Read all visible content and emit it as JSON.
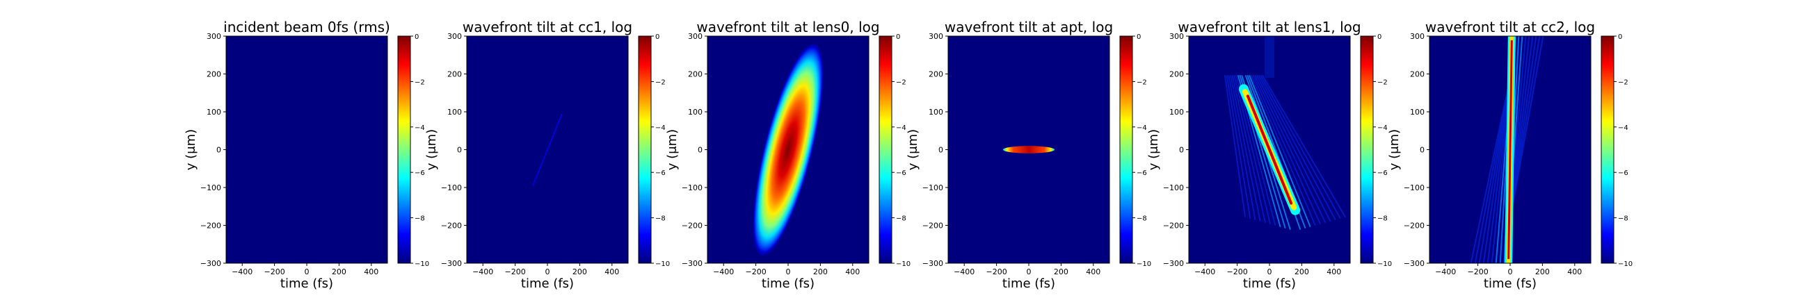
{
  "chart_data": [
    {
      "type": "heatmap",
      "title": "incident beam 0fs (rms)",
      "xlabel": "time (fs)",
      "ylabel": "y (μm)",
      "xlim": [
        -500,
        500
      ],
      "ylim": [
        -300,
        300
      ],
      "x_ticks": [
        "−400",
        "−200",
        "0",
        "200",
        "400"
      ],
      "y_ticks": [
        "300",
        "200",
        "100",
        "0",
        "−100",
        "−200",
        "−300"
      ],
      "colorbar": {
        "range": [
          -10,
          0
        ],
        "ticks": [
          "0",
          "−2",
          "−4",
          "−6",
          "−8",
          "−10"
        ]
      },
      "pattern": {
        "kind": "none"
      }
    },
    {
      "type": "heatmap",
      "title": "wavefront tilt at cc1, log",
      "xlabel": "time (fs)",
      "ylabel": "y (μm)",
      "xlim": [
        -500,
        500
      ],
      "ylim": [
        -300,
        300
      ],
      "x_ticks": [
        "−400",
        "−200",
        "0",
        "200",
        "400"
      ],
      "y_ticks": [
        "300",
        "200",
        "100",
        "0",
        "−100",
        "−200",
        "−300"
      ],
      "colorbar": {
        "range": [
          -10,
          0
        ],
        "ticks": [
          "0",
          "−2",
          "−4",
          "−6",
          "−8",
          "−10"
        ]
      },
      "pattern": {
        "kind": "line",
        "x1": -90,
        "y1": -95,
        "x2": 90,
        "y2": 95,
        "level": -8.5
      }
    },
    {
      "type": "heatmap",
      "title": "wavefront tilt at lens0, log",
      "xlabel": "time (fs)",
      "ylabel": "y (μm)",
      "xlim": [
        -500,
        500
      ],
      "ylim": [
        -300,
        300
      ],
      "x_ticks": [
        "−400",
        "−200",
        "0",
        "200",
        "400"
      ],
      "y_ticks": [
        "300",
        "200",
        "100",
        "0",
        "−100",
        "−200",
        "−300"
      ],
      "colorbar": {
        "range": [
          -10,
          0
        ],
        "ticks": [
          "0",
          "−2",
          "−4",
          "−6",
          "−8",
          "−10"
        ]
      },
      "pattern": {
        "kind": "ellipse",
        "cx": 0,
        "cy": 0,
        "halfwidth_t": 150,
        "halfheight_y": 290,
        "angle_deg": 14
      }
    },
    {
      "type": "heatmap",
      "title": "wavefront tilt at apt, log",
      "xlabel": "time (fs)",
      "ylabel": "y (μm)",
      "xlim": [
        -500,
        500
      ],
      "ylim": [
        -300,
        300
      ],
      "x_ticks": [
        "−400",
        "−200",
        "0",
        "200",
        "400"
      ],
      "y_ticks": [
        "300",
        "200",
        "100",
        "0",
        "−100",
        "−200",
        "−300"
      ],
      "colorbar": {
        "range": [
          -10,
          0
        ],
        "ticks": [
          "0",
          "−2",
          "−4",
          "−6",
          "−8",
          "−10"
        ]
      },
      "pattern": {
        "kind": "bar",
        "cx": 0,
        "cy": 0,
        "halfwidth_t": 160,
        "halfheight_y": 7
      }
    },
    {
      "type": "heatmap",
      "title": "wavefront tilt at lens1, log",
      "xlabel": "time (fs)",
      "ylabel": "y (μm)",
      "xlim": [
        -500,
        500
      ],
      "ylim": [
        -300,
        300
      ],
      "x_ticks": [
        "−400",
        "−200",
        "0",
        "200",
        "400"
      ],
      "y_ticks": [
        "300",
        "200",
        "100",
        "0",
        "−100",
        "−200",
        "−300"
      ],
      "colorbar": {
        "range": [
          -10,
          0
        ],
        "ticks": [
          "0",
          "−2",
          "−4",
          "−6",
          "−8",
          "−10"
        ]
      },
      "pattern": {
        "kind": "tilted-stripes",
        "x1": -160,
        "y1": 160,
        "x2": 160,
        "y2": -160,
        "core_width": 12
      }
    },
    {
      "type": "heatmap",
      "title": "wavefront tilt at cc2, log",
      "xlabel": "time (fs)",
      "ylabel": "y (μm)",
      "xlim": [
        -500,
        500
      ],
      "ylim": [
        -300,
        300
      ],
      "x_ticks": [
        "−400",
        "−200",
        "0",
        "200",
        "400"
      ],
      "y_ticks": [
        "300",
        "200",
        "100",
        "0",
        "−100",
        "−200",
        "−300"
      ],
      "colorbar": {
        "range": [
          -10,
          0
        ],
        "ticks": [
          "0",
          "−2",
          "−4",
          "−6",
          "−8",
          "−10"
        ]
      },
      "pattern": {
        "kind": "vertical-fan",
        "x_top": 10,
        "x_bottom": -10,
        "core_width": 10
      }
    }
  ],
  "colors": {
    "jet": [
      "#00007f",
      "#0000ff",
      "#007fff",
      "#00ffff",
      "#7fff7f",
      "#ffff00",
      "#ff7f00",
      "#ff0000",
      "#7f0000"
    ],
    "background": "#00007f"
  }
}
